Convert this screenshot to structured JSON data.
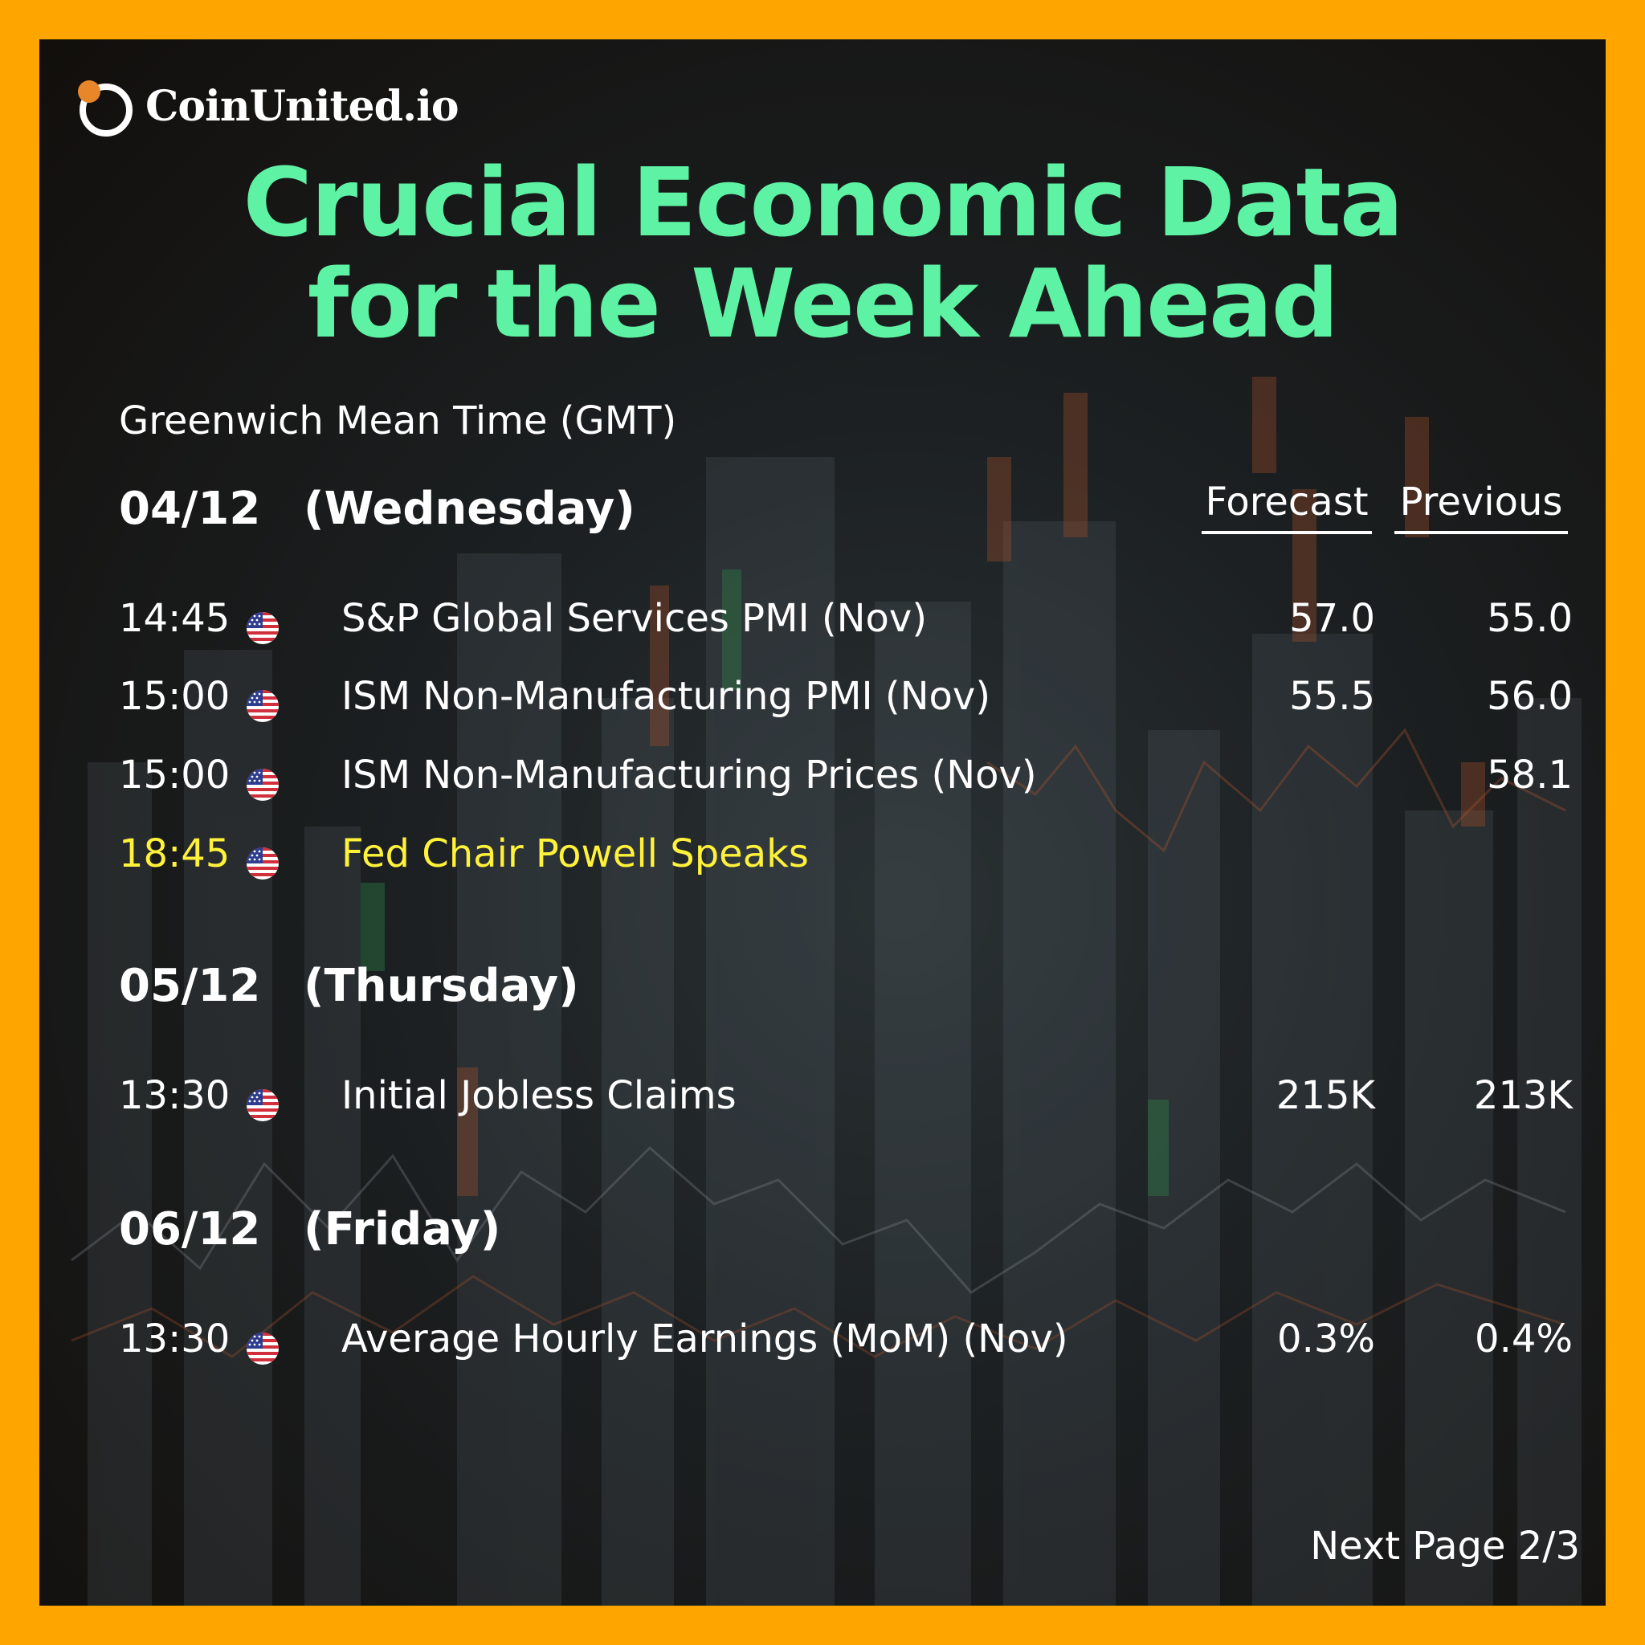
{
  "brand": {
    "name": "CoinUnited.io",
    "logo_icon": "coinunited-logo-icon",
    "accent": "#E8872A"
  },
  "title": {
    "line1": "Crucial Economic Data",
    "line2": "for the Week Ahead",
    "color": "#5EF3A4"
  },
  "timezone": "Greenwich Mean Time (GMT)",
  "columns": {
    "forecast": "Forecast",
    "previous": "Previous"
  },
  "days": [
    {
      "date": "04/12",
      "weekday": "(Wednesday)",
      "events": [
        {
          "time": "14:45",
          "flag": "us-flag-icon",
          "name": "S&P Global Services PMI (Nov)",
          "forecast": "57.0",
          "previous": "55.0"
        },
        {
          "time": "15:00",
          "flag": "us-flag-icon",
          "name": "ISM Non-Manufacturing PMI (Nov)",
          "forecast": "55.5",
          "previous": "56.0"
        },
        {
          "time": "15:00",
          "flag": "us-flag-icon",
          "name": "ISM Non-Manufacturing Prices (Nov)",
          "forecast": "",
          "previous": "58.1"
        },
        {
          "time": "18:45",
          "flag": "us-flag-icon",
          "name": "Fed Chair Powell Speaks",
          "forecast": "",
          "previous": "",
          "highlight_color": "#FFF23A"
        }
      ]
    },
    {
      "date": "05/12",
      "weekday": "(Thursday)",
      "events": [
        {
          "time": "13:30",
          "flag": "us-flag-icon",
          "name": "Initial Jobless Claims",
          "forecast": "215K",
          "previous": "213K"
        }
      ]
    },
    {
      "date": "06/12",
      "weekday": "(Friday)",
      "events": [
        {
          "time": "13:30",
          "flag": "us-flag-icon",
          "name": "Average Hourly Earnings (MoM) (Nov)",
          "forecast": "0.3%",
          "previous": "0.4%"
        }
      ]
    }
  ],
  "footer": {
    "next_page": "Next Page 2/3"
  },
  "colors": {
    "frame": "#FFA500"
  }
}
